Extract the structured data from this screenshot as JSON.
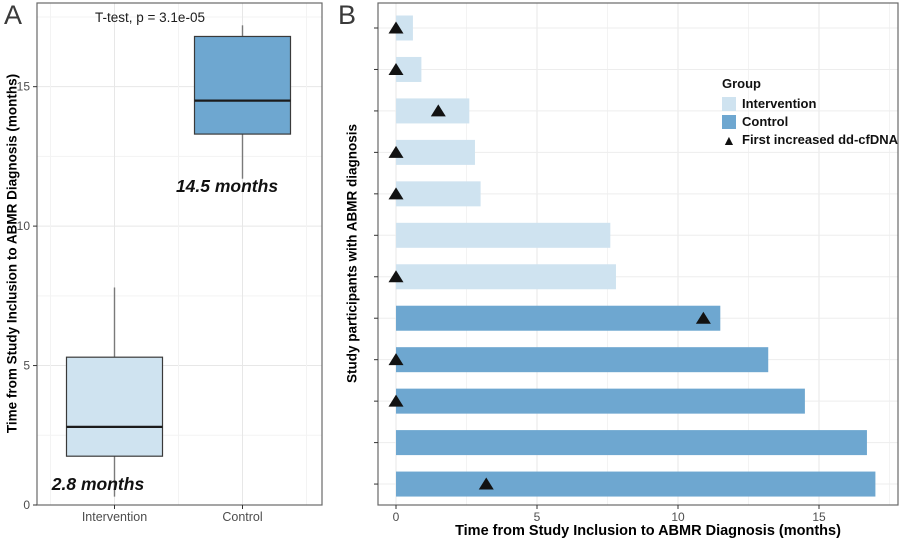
{
  "figure_title": "",
  "panels": {
    "a_label": "A",
    "b_label": "B"
  },
  "colors": {
    "intervention": "#cfe3f0",
    "control": "#6ea7d0",
    "marker": "#121212",
    "grid_major": "#e7e7e7",
    "grid_minor": "#f3f3f3",
    "row_grid": "#ededed",
    "panel_border": "#696969",
    "tick_mark": "#333333",
    "axis_text": "#4d4d4d",
    "box_stroke": "#3a3a3a",
    "median_stroke": "#1b1b1b",
    "whisker": "#7a7a7a"
  },
  "chart_data": [
    {
      "id": "panel_A",
      "type": "boxplot",
      "panel_label": "A",
      "annotation": "T-test, p = 3.1e-05",
      "ylabel": "Time from Study Inclusion to ABMR Diagnosis (months)",
      "categories": [
        "Intervention",
        "Control"
      ],
      "ylim": [
        0,
        18
      ],
      "yticks": [
        0,
        5,
        10,
        15
      ],
      "grid": true,
      "boxes": [
        {
          "category": "Intervention",
          "group": "Intervention",
          "whisker_low": 0.3,
          "q1": 1.75,
          "median": 2.8,
          "q3": 5.3,
          "whisker_high": 7.8,
          "median_label": "2.8 months"
        },
        {
          "category": "Control",
          "group": "Control",
          "whisker_low": 11.7,
          "q1": 13.3,
          "median": 14.5,
          "q3": 16.8,
          "whisker_high": 17.2,
          "median_label": "14.5 months"
        }
      ]
    },
    {
      "id": "panel_B",
      "type": "bar",
      "orientation": "horizontal",
      "panel_label": "B",
      "xlabel": "Time from Study Inclusion to ABMR Diagnosis (months)",
      "ylabel": "Study participants with ABMR diagnosis",
      "xlim": [
        0,
        17.8
      ],
      "xticks": [
        0,
        5,
        10,
        15
      ],
      "grid_minor_step": 2.5,
      "legend": {
        "position": "inside-top-right",
        "title": "Group",
        "items": [
          {
            "label": "Intervention",
            "swatch": "intervention"
          },
          {
            "label": "Control",
            "swatch": "control"
          },
          {
            "label": "First increased dd-cfDNA",
            "swatch": "triangle"
          }
        ]
      },
      "participants": [
        {
          "row": 1,
          "group": "Intervention",
          "diagnosis_months": 0.6,
          "first_dd_cfdna_months": 0
        },
        {
          "row": 2,
          "group": "Intervention",
          "diagnosis_months": 0.9,
          "first_dd_cfdna_months": 0
        },
        {
          "row": 3,
          "group": "Intervention",
          "diagnosis_months": 2.6,
          "first_dd_cfdna_months": 1.5
        },
        {
          "row": 4,
          "group": "Intervention",
          "diagnosis_months": 2.8,
          "first_dd_cfdna_months": 0
        },
        {
          "row": 5,
          "group": "Intervention",
          "diagnosis_months": 3.0,
          "first_dd_cfdna_months": 0
        },
        {
          "row": 6,
          "group": "Intervention",
          "diagnosis_months": 7.6,
          "first_dd_cfdna_months": null
        },
        {
          "row": 7,
          "group": "Intervention",
          "diagnosis_months": 7.8,
          "first_dd_cfdna_months": 0
        },
        {
          "row": 8,
          "group": "Control",
          "diagnosis_months": 11.5,
          "first_dd_cfdna_months": 10.9
        },
        {
          "row": 9,
          "group": "Control",
          "diagnosis_months": 13.2,
          "first_dd_cfdna_months": 0
        },
        {
          "row": 10,
          "group": "Control",
          "diagnosis_months": 14.5,
          "first_dd_cfdna_months": 0
        },
        {
          "row": 11,
          "group": "Control",
          "diagnosis_months": 16.7,
          "first_dd_cfdna_months": null
        },
        {
          "row": 12,
          "group": "Control",
          "diagnosis_months": 17.0,
          "first_dd_cfdna_months": 3.2
        }
      ]
    }
  ]
}
